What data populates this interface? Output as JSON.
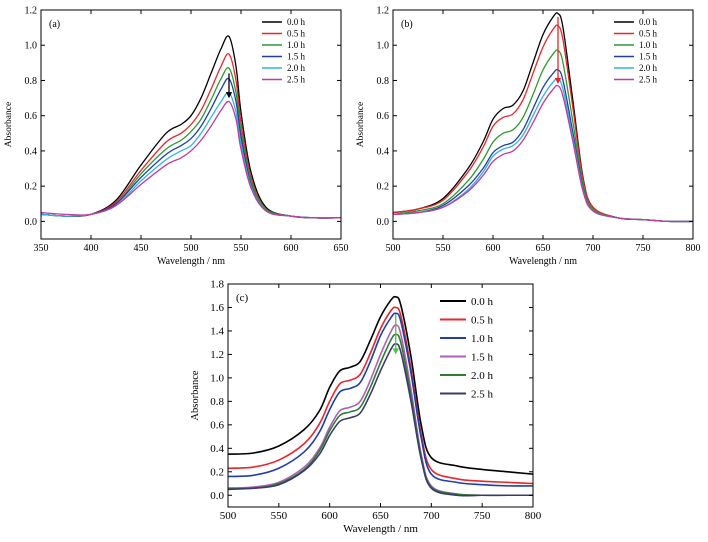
{
  "chart_data": [
    {
      "type": "line",
      "panel_label": "(a)",
      "xlabel": "Wavelength / nm",
      "ylabel": "Absorbance",
      "xlim": [
        350,
        650
      ],
      "ylim": [
        -0.1,
        1.2
      ],
      "xticks": [
        "350",
        "400",
        "450",
        "500",
        "550",
        "600",
        "650"
      ],
      "yticks": [
        "0.0",
        "0.2",
        "0.4",
        "0.6",
        "0.8",
        "1.0",
        "1.2"
      ],
      "grid": false,
      "legend": "top-right",
      "arrow": {
        "x": 538,
        "y_from": 0.84,
        "y_to": 0.7,
        "color": "#000000"
      },
      "x": [
        350,
        375,
        400,
        425,
        450,
        475,
        490,
        500,
        510,
        520,
        530,
        538,
        545,
        550,
        560,
        575,
        600,
        625,
        650
      ],
      "series": [
        {
          "name": "0.0 h",
          "color": "#000000",
          "values": [
            0.04,
            0.03,
            0.04,
            0.12,
            0.32,
            0.5,
            0.55,
            0.6,
            0.7,
            0.84,
            0.98,
            1.05,
            0.88,
            0.62,
            0.28,
            0.08,
            0.03,
            0.02,
            0.02
          ]
        },
        {
          "name": "0.5 h",
          "color": "#e8262b",
          "values": [
            0.04,
            0.03,
            0.04,
            0.11,
            0.29,
            0.45,
            0.5,
            0.55,
            0.63,
            0.75,
            0.88,
            0.95,
            0.8,
            0.56,
            0.25,
            0.07,
            0.03,
            0.02,
            0.02
          ]
        },
        {
          "name": "1.0 h",
          "color": "#2e9a2e",
          "values": [
            0.04,
            0.03,
            0.04,
            0.1,
            0.27,
            0.41,
            0.46,
            0.51,
            0.58,
            0.69,
            0.81,
            0.87,
            0.73,
            0.51,
            0.23,
            0.07,
            0.03,
            0.02,
            0.02
          ]
        },
        {
          "name": "1.5 h",
          "color": "#1f3ea8",
          "values": [
            0.04,
            0.03,
            0.04,
            0.1,
            0.25,
            0.38,
            0.43,
            0.47,
            0.54,
            0.64,
            0.75,
            0.81,
            0.68,
            0.48,
            0.21,
            0.06,
            0.03,
            0.02,
            0.02
          ]
        },
        {
          "name": "2.0 h",
          "color": "#2fb3e6",
          "values": [
            0.04,
            0.03,
            0.04,
            0.09,
            0.23,
            0.35,
            0.4,
            0.43,
            0.5,
            0.59,
            0.68,
            0.73,
            0.62,
            0.44,
            0.2,
            0.06,
            0.03,
            0.02,
            0.02
          ]
        },
        {
          "name": "2.5 h",
          "color": "#c33a9c",
          "values": [
            0.05,
            0.04,
            0.04,
            0.09,
            0.21,
            0.32,
            0.36,
            0.4,
            0.46,
            0.54,
            0.63,
            0.68,
            0.58,
            0.41,
            0.19,
            0.06,
            0.03,
            0.02,
            0.02
          ]
        }
      ]
    },
    {
      "type": "line",
      "panel_label": "(b)",
      "xlabel": "Wavelength / nm",
      "ylabel": "Absorbance",
      "xlim": [
        500,
        800
      ],
      "ylim": [
        -0.1,
        1.2
      ],
      "xticks": [
        "500",
        "550",
        "600",
        "650",
        "700",
        "750",
        "800"
      ],
      "yticks": [
        "0.0",
        "0.2",
        "0.4",
        "0.6",
        "0.8",
        "1.0",
        "1.2"
      ],
      "grid": false,
      "legend": "top-right",
      "arrow": {
        "x": 665,
        "y_from": 1.16,
        "y_to": 0.78,
        "color": "#e8262b"
      },
      "x": [
        500,
        525,
        550,
        575,
        590,
        600,
        610,
        620,
        630,
        640,
        650,
        660,
        665,
        670,
        680,
        690,
        700,
        725,
        750,
        775,
        800
      ],
      "series": [
        {
          "name": "0.0 h",
          "color": "#000000",
          "values": [
            0.05,
            0.07,
            0.13,
            0.3,
            0.45,
            0.58,
            0.64,
            0.66,
            0.74,
            0.9,
            1.06,
            1.16,
            1.18,
            1.1,
            0.68,
            0.25,
            0.08,
            0.02,
            0.01,
            0.0,
            0.0
          ]
        },
        {
          "name": "0.5 h",
          "color": "#e8262b",
          "values": [
            0.05,
            0.07,
            0.12,
            0.28,
            0.42,
            0.54,
            0.59,
            0.61,
            0.69,
            0.84,
            0.99,
            1.09,
            1.11,
            1.03,
            0.64,
            0.24,
            0.08,
            0.02,
            0.01,
            0.0,
            0.0
          ]
        },
        {
          "name": "1.0 h",
          "color": "#2e9a2e",
          "values": [
            0.04,
            0.06,
            0.1,
            0.23,
            0.35,
            0.45,
            0.5,
            0.52,
            0.59,
            0.72,
            0.86,
            0.95,
            0.97,
            0.9,
            0.56,
            0.21,
            0.07,
            0.02,
            0.01,
            0.0,
            0.0
          ]
        },
        {
          "name": "1.5 h",
          "color": "#1f3ea8",
          "values": [
            0.04,
            0.05,
            0.09,
            0.2,
            0.3,
            0.39,
            0.43,
            0.45,
            0.52,
            0.64,
            0.76,
            0.84,
            0.86,
            0.8,
            0.5,
            0.19,
            0.06,
            0.02,
            0.01,
            0.0,
            0.0
          ]
        },
        {
          "name": "2.0 h",
          "color": "#2fb3e6",
          "values": [
            0.04,
            0.05,
            0.08,
            0.18,
            0.28,
            0.37,
            0.41,
            0.43,
            0.49,
            0.6,
            0.71,
            0.79,
            0.81,
            0.75,
            0.47,
            0.18,
            0.06,
            0.02,
            0.01,
            0.0,
            0.0
          ]
        },
        {
          "name": "2.5 h",
          "color": "#c33a9c",
          "values": [
            0.04,
            0.05,
            0.08,
            0.17,
            0.26,
            0.34,
            0.38,
            0.4,
            0.46,
            0.56,
            0.67,
            0.75,
            0.77,
            0.71,
            0.45,
            0.17,
            0.06,
            0.02,
            0.01,
            0.0,
            0.0
          ]
        }
      ]
    },
    {
      "type": "line",
      "panel_label": "(c)",
      "xlabel": "Wavelength / nm",
      "ylabel": "Absorbance",
      "xlim": [
        500,
        800
      ],
      "ylim": [
        -0.1,
        1.8
      ],
      "xticks": [
        "500",
        "550",
        "600",
        "650",
        "700",
        "750",
        "800"
      ],
      "yticks": [
        "0.0",
        "0.2",
        "0.4",
        "0.6",
        "0.8",
        "1.0",
        "1.2",
        "1.4",
        "1.6",
        "1.8"
      ],
      "grid": false,
      "legend": "top-right",
      "arrow": {
        "x": 665,
        "y_from": 1.54,
        "y_to": 1.2,
        "color": "#4fc23f"
      },
      "x": [
        500,
        525,
        550,
        575,
        590,
        600,
        610,
        620,
        630,
        640,
        650,
        660,
        665,
        670,
        680,
        690,
        700,
        725,
        750,
        775,
        800
      ],
      "series": [
        {
          "name": "0.0 h",
          "color": "#000000",
          "values": [
            0.35,
            0.36,
            0.42,
            0.56,
            0.72,
            0.92,
            1.06,
            1.09,
            1.14,
            1.32,
            1.52,
            1.66,
            1.69,
            1.62,
            1.18,
            0.6,
            0.32,
            0.25,
            0.22,
            0.2,
            0.18
          ]
        },
        {
          "name": "0.5 h",
          "color": "#e8262b",
          "values": [
            0.23,
            0.24,
            0.3,
            0.44,
            0.61,
            0.8,
            0.95,
            0.98,
            1.03,
            1.21,
            1.42,
            1.57,
            1.6,
            1.53,
            1.08,
            0.52,
            0.22,
            0.14,
            0.12,
            0.11,
            0.1
          ]
        },
        {
          "name": "1.0 h",
          "color": "#1f3ea8",
          "values": [
            0.16,
            0.17,
            0.23,
            0.37,
            0.54,
            0.73,
            0.88,
            0.91,
            0.96,
            1.14,
            1.36,
            1.51,
            1.55,
            1.48,
            1.04,
            0.49,
            0.18,
            0.11,
            0.09,
            0.08,
            0.08
          ]
        },
        {
          "name": "1.5 h",
          "color": "#b05fb8",
          "values": [
            0.06,
            0.07,
            0.11,
            0.24,
            0.4,
            0.58,
            0.72,
            0.75,
            0.8,
            0.98,
            1.2,
            1.39,
            1.45,
            1.37,
            0.9,
            0.35,
            0.08,
            0.01,
            0.0,
            0.0,
            0.0
          ]
        },
        {
          "name": "2.0 h",
          "color": "#2e7d32",
          "values": [
            0.06,
            0.06,
            0.1,
            0.22,
            0.38,
            0.55,
            0.68,
            0.71,
            0.75,
            0.92,
            1.13,
            1.32,
            1.37,
            1.3,
            0.85,
            0.33,
            0.07,
            0.01,
            0.0,
            0.0,
            0.0
          ]
        },
        {
          "name": "2.5 h",
          "color": "#3a3a6e",
          "values": [
            0.05,
            0.06,
            0.09,
            0.21,
            0.35,
            0.51,
            0.63,
            0.66,
            0.7,
            0.86,
            1.06,
            1.24,
            1.29,
            1.22,
            0.8,
            0.31,
            0.06,
            0.0,
            0.0,
            0.0,
            0.0
          ]
        }
      ]
    }
  ]
}
